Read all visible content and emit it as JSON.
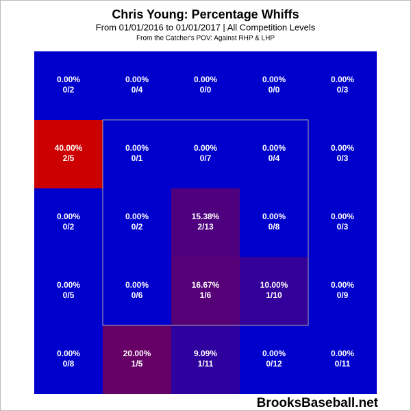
{
  "chart_data": {
    "type": "heatmap",
    "title": "Chris Young: Percentage Whiffs",
    "subtitle": "From 01/01/2016 to 01/01/2017 | All Competition Levels",
    "note": "From the Catcher's POV:  Against RHP & LHP",
    "watermark": "BrooksBaseball.net",
    "colorscale": [
      "#0000cc",
      "#660066",
      "#cc0000"
    ],
    "values": [
      [
        0,
        0,
        0,
        0,
        0
      ],
      [
        40,
        0,
        0,
        0,
        0
      ],
      [
        0,
        0,
        15.38,
        0,
        0
      ],
      [
        0,
        0,
        16.67,
        10,
        0
      ],
      [
        0,
        20,
        9.09,
        0,
        0
      ]
    ],
    "value_labels": [
      [
        "0.00%",
        "0.00%",
        "0.00%",
        "0.00%",
        "0.00%"
      ],
      [
        "40.00%",
        "0.00%",
        "0.00%",
        "0.00%",
        "0.00%"
      ],
      [
        "0.00%",
        "0.00%",
        "15.38%",
        "0.00%",
        "0.00%"
      ],
      [
        "0.00%",
        "0.00%",
        "16.67%",
        "10.00%",
        "0.00%"
      ],
      [
        "0.00%",
        "20.00%",
        "9.09%",
        "0.00%",
        "0.00%"
      ]
    ],
    "counts": [
      [
        "0/2",
        "0/4",
        "0/0",
        "0/0",
        "0/3"
      ],
      [
        "2/5",
        "0/1",
        "0/7",
        "0/4",
        "0/3"
      ],
      [
        "0/2",
        "0/2",
        "2/13",
        "0/8",
        "0/3"
      ],
      [
        "0/5",
        "0/6",
        "1/6",
        "1/10",
        "0/9"
      ],
      [
        "0/8",
        "1/5",
        "1/11",
        "0/12",
        "0/11"
      ]
    ]
  }
}
